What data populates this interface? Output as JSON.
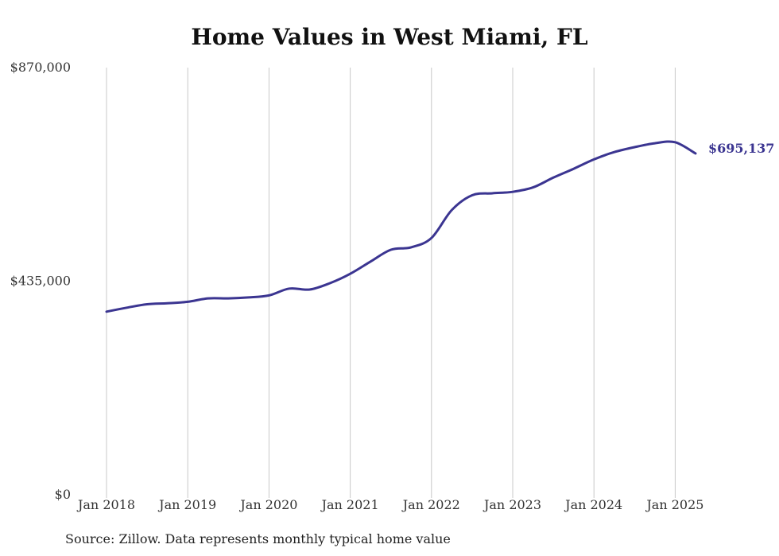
{
  "chart_data": {
    "type": "line",
    "title": "Home Values in West Miami, FL",
    "xlabel": "",
    "ylabel": "",
    "ylim": [
      0,
      870000
    ],
    "y_ticks": [
      0,
      435000,
      870000
    ],
    "y_tick_labels": [
      "$0",
      "$435,000",
      "$870,000"
    ],
    "x_ticks": [
      2018,
      2019,
      2020,
      2021,
      2022,
      2023,
      2024,
      2025
    ],
    "x_tick_labels": [
      "Jan 2018",
      "Jan 2019",
      "Jan 2020",
      "Jan 2021",
      "Jan 2022",
      "Jan 2023",
      "Jan 2024",
      "Jan 2025"
    ],
    "grid": "vertical",
    "line_color": "#3b3591",
    "end_label": "$695,137",
    "series": [
      {
        "x": [
          "2018-01",
          "2018-04",
          "2018-07",
          "2018-10",
          "2019-01",
          "2019-04",
          "2019-07",
          "2019-10",
          "2020-01",
          "2020-04",
          "2020-07",
          "2020-10",
          "2021-01",
          "2021-04",
          "2021-07",
          "2021-10",
          "2022-01",
          "2022-04",
          "2022-07",
          "2022-10",
          "2023-01",
          "2023-04",
          "2023-07",
          "2023-10",
          "2024-01",
          "2024-04",
          "2024-07",
          "2024-10",
          "2025-01",
          "2025-04"
        ],
        "y": [
          373000,
          381000,
          388000,
          390000,
          393000,
          400000,
          400000,
          402000,
          406000,
          420000,
          418000,
          431000,
          450000,
          475000,
          499000,
          504000,
          523000,
          580000,
          610000,
          614000,
          617000,
          626000,
          646000,
          664000,
          683000,
          698000,
          708000,
          716000,
          718000,
          695137
        ]
      }
    ]
  },
  "source_text": "Source: Zillow. Data represents monthly typical home value"
}
